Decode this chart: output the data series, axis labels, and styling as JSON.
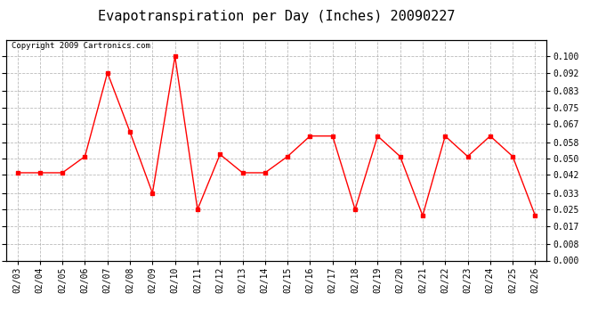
{
  "title": "Evapotranspiration per Day (Inches) 20090227",
  "copyright_text": "Copyright 2009 Cartronics.com",
  "dates": [
    "02/03",
    "02/04",
    "02/05",
    "02/06",
    "02/07",
    "02/08",
    "02/09",
    "02/10",
    "02/11",
    "02/12",
    "02/13",
    "02/14",
    "02/15",
    "02/16",
    "02/17",
    "02/18",
    "02/19",
    "02/20",
    "02/21",
    "02/22",
    "02/23",
    "02/24",
    "02/25",
    "02/26"
  ],
  "values": [
    0.043,
    0.043,
    0.043,
    0.051,
    0.092,
    0.063,
    0.033,
    0.1,
    0.025,
    0.052,
    0.043,
    0.043,
    0.051,
    0.061,
    0.061,
    0.025,
    0.061,
    0.051,
    0.022,
    0.061,
    0.051,
    0.061,
    0.051,
    0.022
  ],
  "line_color": "#ff0000",
  "marker": "s",
  "marker_size": 3,
  "ylim": [
    0.0,
    0.108
  ],
  "yticks": [
    0.0,
    0.008,
    0.017,
    0.025,
    0.033,
    0.042,
    0.05,
    0.058,
    0.067,
    0.075,
    0.083,
    0.092,
    0.1
  ],
  "ytick_labels": [
    "0.000",
    "0.008",
    "0.017",
    "0.025",
    "0.033",
    "0.042",
    "0.050",
    "0.058",
    "0.067",
    "0.075",
    "0.083",
    "0.092",
    "0.100"
  ],
  "background_color": "#ffffff",
  "grid_color": "#aaaaaa",
  "title_fontsize": 11,
  "tick_fontsize": 7,
  "copyright_fontsize": 6.5
}
